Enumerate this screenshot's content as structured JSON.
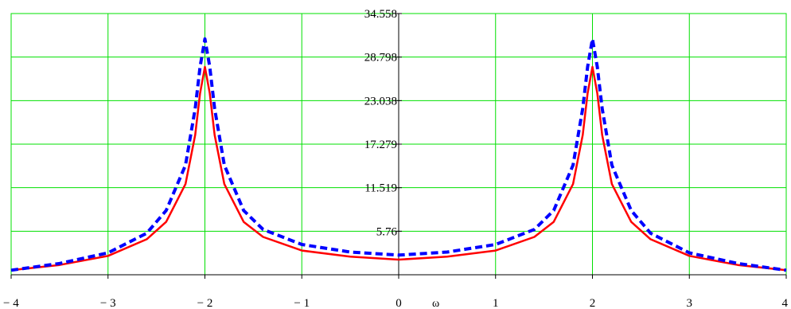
{
  "chart_data": {
    "type": "line",
    "xlabel": "ω",
    "ylabel": "",
    "xlim": [
      -4,
      4
    ],
    "ylim": [
      0,
      34.558
    ],
    "grid": true,
    "x_ticks": [
      -4,
      -3,
      -2,
      -1,
      0,
      1,
      2,
      3,
      4
    ],
    "x_tick_labels": [
      "− 4",
      "− 3",
      "− 2",
      "− 1",
      "0",
      "1",
      "2",
      "3",
      "4"
    ],
    "y_ticks": [
      5.76,
      11.519,
      17.279,
      23.038,
      28.798,
      34.558
    ],
    "y_tick_labels": [
      "5.76",
      "11.519",
      "17.279",
      "23.038",
      "28.798",
      "34.558"
    ],
    "colors": {
      "grid": "#00e000",
      "series1": "#ff0000",
      "series2": "#0000ff"
    },
    "series": [
      {
        "style": "solid",
        "color": "#ff0000",
        "x": [
          -4,
          -3.5,
          -3,
          -2.6,
          -2.4,
          -2.2,
          -2.1,
          -2.05,
          -2,
          -1.95,
          -1.9,
          -1.8,
          -1.6,
          -1.4,
          -1,
          -0.5,
          0,
          0.5,
          1,
          1.4,
          1.6,
          1.8,
          1.9,
          1.95,
          2,
          2.05,
          2.1,
          2.2,
          2.4,
          2.6,
          3,
          3.5,
          4
        ],
        "y": [
          0.6,
          1.3,
          2.5,
          4.7,
          7.0,
          12.0,
          18.5,
          24.0,
          27.5,
          24.0,
          18.5,
          12.0,
          7.0,
          5.0,
          3.2,
          2.4,
          2.0,
          2.4,
          3.2,
          5.0,
          7.0,
          12.0,
          18.5,
          24.0,
          27.5,
          24.0,
          18.5,
          12.0,
          7.0,
          4.7,
          2.5,
          1.3,
          0.6
        ]
      },
      {
        "style": "dashed",
        "color": "#0000ff",
        "x": [
          -4,
          -3.5,
          -3,
          -2.6,
          -2.4,
          -2.2,
          -2.1,
          -2.05,
          -2,
          -1.95,
          -1.9,
          -1.8,
          -1.6,
          -1.4,
          -1,
          -0.5,
          0,
          0.5,
          1,
          1.4,
          1.6,
          1.8,
          1.9,
          1.95,
          2,
          2.05,
          2.1,
          2.2,
          2.4,
          2.6,
          3,
          3.5,
          4
        ],
        "y": [
          0.6,
          1.5,
          2.9,
          5.5,
          8.5,
          14.5,
          22.0,
          27.5,
          31.2,
          27.5,
          22.0,
          14.5,
          8.5,
          6.0,
          4.0,
          3.0,
          2.6,
          3.0,
          4.0,
          6.0,
          8.5,
          14.5,
          22.0,
          27.5,
          31.2,
          27.5,
          22.0,
          14.5,
          8.5,
          5.5,
          2.9,
          1.5,
          0.6
        ]
      }
    ]
  }
}
